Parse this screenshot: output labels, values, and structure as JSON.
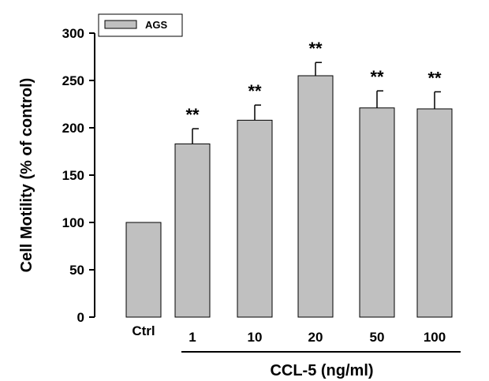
{
  "chart_data": {
    "type": "bar",
    "ylabel": "Cell Motility (% of control)",
    "xlabel": "CCL-5 (ng/ml)",
    "ylim": [
      0,
      300
    ],
    "yticks": [
      "0",
      "50",
      "100",
      "150",
      "200",
      "250",
      "300"
    ],
    "categories": [
      "Ctrl",
      "1",
      "10",
      "20",
      "50",
      "100"
    ],
    "series": [
      {
        "name": "AGS",
        "values": [
          100,
          183,
          208,
          255,
          221,
          220
        ],
        "errors": [
          0,
          16,
          16,
          14,
          18,
          18
        ],
        "significance": [
          "",
          "**",
          "**",
          "**",
          "**",
          "**"
        ]
      }
    ],
    "legend": {
      "position": "top-left"
    },
    "grid": false,
    "colors": {
      "bar_fill": "#c0c0c0",
      "bar_stroke": "#000000"
    }
  }
}
